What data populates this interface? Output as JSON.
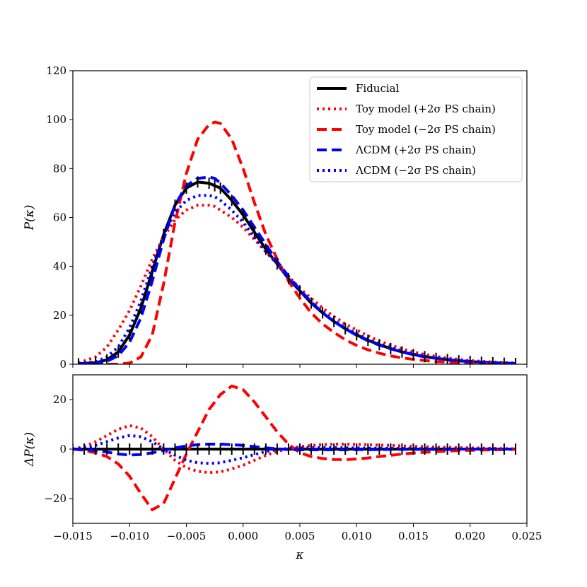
{
  "chart_data": [
    {
      "type": "line",
      "panel": "top",
      "title": "",
      "xlabel": "",
      "ylabel": "P(κ)",
      "xlim": [
        -0.015,
        0.025
      ],
      "ylim": [
        0,
        120
      ],
      "xticks": [
        -0.015,
        -0.01,
        -0.005,
        0.0,
        0.005,
        0.01,
        0.015,
        0.02,
        0.025
      ],
      "yticks": [
        0,
        20,
        40,
        60,
        80,
        100,
        120
      ],
      "ytick_labels": [
        "0",
        "20",
        "40",
        "60",
        "80",
        "100",
        "120"
      ],
      "legend_position": "top-right",
      "x": [
        -0.0145,
        -0.013,
        -0.012,
        -0.011,
        -0.01,
        -0.009,
        -0.008,
        -0.007,
        -0.006,
        -0.005,
        -0.004,
        -0.003,
        -0.0025,
        -0.002,
        -0.001,
        0.0,
        0.001,
        0.002,
        0.003,
        0.004,
        0.005,
        0.006,
        0.007,
        0.008,
        0.009,
        0.01,
        0.011,
        0.012,
        0.013,
        0.014,
        0.015,
        0.016,
        0.017,
        0.018,
        0.019,
        0.02,
        0.021,
        0.022,
        0.023,
        0.024
      ],
      "series": [
        {
          "name": "Fiducial",
          "color": "#000000",
          "style": "solid",
          "values": [
            0.2,
            0.6,
            1.8,
            5,
            12,
            23,
            38,
            53,
            65,
            72,
            74.5,
            74,
            73,
            72,
            67,
            61,
            54,
            47,
            41,
            35,
            30,
            25,
            21,
            17.5,
            14.5,
            12,
            9.8,
            8,
            6.4,
            5,
            4,
            3.1,
            2.4,
            1.9,
            1.4,
            1.1,
            0.8,
            0.6,
            0.4,
            0.3
          ]
        },
        {
          "name": "Toy model (+2σ PS chain)",
          "color": "#ff0000",
          "style": "dotted",
          "values": [
            0.5,
            3,
            7,
            14,
            22,
            32,
            43,
            52,
            59,
            63,
            65,
            65,
            64.5,
            63,
            60,
            56,
            51,
            46,
            41,
            36,
            31,
            27,
            23,
            19.5,
            16.5,
            14,
            11.6,
            9.5,
            7.8,
            6.3,
            5,
            4,
            3.2,
            2.5,
            2,
            1.5,
            1.2,
            0.9,
            0.7,
            0.5
          ]
        },
        {
          "name": "Toy model (−2σ PS chain)",
          "color": "#ff0000",
          "style": "dashed",
          "values": [
            0,
            0,
            0,
            0,
            0.5,
            3,
            12,
            33,
            58,
            78,
            92,
            98,
            99,
            98.5,
            92,
            80,
            66,
            53,
            43,
            34,
            27,
            21,
            16.5,
            13,
            10,
            7.7,
            5.9,
            4.5,
            3.4,
            2.6,
            2,
            1.5,
            1.1,
            0.8,
            0.6,
            0.4,
            0.3,
            0.2,
            0.1,
            0.1
          ]
        },
        {
          "name": "ΛCDM (+2σ PS chain)",
          "color": "#0000ff",
          "style": "dashed",
          "values": [
            0.1,
            0.4,
            1.2,
            3.5,
            9,
            19,
            34,
            51,
            65,
            73,
            76,
            76.5,
            76,
            74,
            69,
            63,
            56,
            49,
            42,
            36,
            30.5,
            25.5,
            21,
            17.5,
            14.5,
            11.8,
            9.6,
            7.8,
            6.3,
            5,
            3.9,
            3,
            2.4,
            1.8,
            1.4,
            1.1,
            0.8,
            0.6,
            0.4,
            0.3
          ]
        },
        {
          "name": "ΛCDM (−2σ PS chain)",
          "color": "#0000ff",
          "style": "dotted",
          "values": [
            0.3,
            1,
            3,
            7,
            15,
            26,
            40,
            53,
            62,
            67,
            69,
            69,
            68.5,
            67,
            63,
            58,
            52,
            46,
            41,
            35,
            30,
            25.5,
            21.5,
            18,
            15,
            12.4,
            10.2,
            8.3,
            6.7,
            5.3,
            4.2,
            3.3,
            2.6,
            2,
            1.5,
            1.2,
            0.9,
            0.7,
            0.5,
            0.35
          ]
        }
      ]
    },
    {
      "type": "line",
      "panel": "bottom",
      "title": "",
      "xlabel": "κ",
      "ylabel": "ΔP(κ)",
      "xlim": [
        -0.015,
        0.025
      ],
      "ylim": [
        -30,
        30
      ],
      "xticks": [
        -0.015,
        -0.01,
        -0.005,
        0.0,
        0.005,
        0.01,
        0.015,
        0.02,
        0.025
      ],
      "xtick_labels": [
        "−0.015",
        "−0.010",
        "−0.005",
        "0.000",
        "0.005",
        "0.010",
        "0.015",
        "0.020",
        "0.025"
      ],
      "yticks": [
        -20,
        0,
        20
      ],
      "ytick_labels": [
        "−20",
        "0",
        "20"
      ],
      "x": [
        -0.015,
        -0.014,
        -0.013,
        -0.012,
        -0.011,
        -0.01,
        -0.009,
        -0.008,
        -0.007,
        -0.006,
        -0.005,
        -0.004,
        -0.003,
        -0.002,
        -0.001,
        0.0,
        0.001,
        0.002,
        0.003,
        0.004,
        0.005,
        0.006,
        0.007,
        0.008,
        0.009,
        0.01,
        0.011,
        0.012,
        0.013,
        0.014,
        0.015,
        0.016,
        0.017,
        0.018,
        0.019,
        0.02,
        0.021,
        0.022,
        0.023,
        0.024
      ],
      "series": [
        {
          "name": "Fiducial",
          "color": "#000000",
          "style": "solid",
          "values": [
            0,
            0,
            0,
            0,
            0,
            0,
            0,
            0,
            0,
            0,
            0,
            0,
            0,
            0,
            0,
            0,
            0,
            0,
            0,
            0,
            0,
            0,
            0,
            0,
            0,
            0,
            0,
            0,
            0,
            0,
            0,
            0,
            0,
            0,
            0,
            0,
            0,
            0,
            0,
            0
          ]
        },
        {
          "name": "Toy model (+2σ PS chain)",
          "color": "#ff0000",
          "style": "dotted",
          "values": [
            0,
            1,
            3,
            5.5,
            8,
            9.5,
            8.5,
            5,
            0,
            -4.5,
            -7.5,
            -9,
            -9.5,
            -9.2,
            -8,
            -6.5,
            -4.5,
            -2.5,
            -1,
            0.2,
            1,
            1.5,
            1.8,
            2,
            2,
            1.9,
            1.8,
            1.6,
            1.5,
            1.3,
            1.1,
            1,
            0.8,
            0.7,
            0.6,
            0.5,
            0.4,
            0.3,
            0.2,
            0.1
          ]
        },
        {
          "name": "Toy model (−2σ PS chain)",
          "color": "#ff0000",
          "style": "dashed",
          "values": [
            0,
            -0.5,
            -1.5,
            -3,
            -6,
            -11,
            -18,
            -24.5,
            -22,
            -12,
            -2,
            7,
            16,
            22,
            25.5,
            24,
            19,
            13,
            7,
            2,
            -1.5,
            -3,
            -3.8,
            -4.2,
            -4.3,
            -4,
            -3.6,
            -3,
            -2.5,
            -2,
            -1.6,
            -1.3,
            -1,
            -0.8,
            -0.6,
            -0.5,
            -0.4,
            -0.3,
            -0.2,
            -0.1
          ]
        },
        {
          "name": "ΛCDM (+2σ PS chain)",
          "color": "#0000ff",
          "style": "dashed",
          "values": [
            0,
            -0.2,
            -0.6,
            -1.2,
            -2,
            -2.4,
            -2.2,
            -1.5,
            -0.5,
            0.5,
            1.3,
            1.8,
            2,
            2,
            1.8,
            1.5,
            1,
            0.5,
            0.1,
            -0.2,
            -0.3,
            -0.3,
            -0.3,
            -0.3,
            -0.3,
            -0.2,
            -0.2,
            -0.2,
            -0.1,
            -0.1,
            -0.1,
            -0.1,
            -0.1,
            -0.1,
            0,
            0,
            0,
            0,
            0,
            0
          ]
        },
        {
          "name": "ΛCDM (−2σ PS chain)",
          "color": "#0000ff",
          "style": "dotted",
          "values": [
            0,
            0.5,
            1.5,
            3,
            4.5,
            5.5,
            5,
            3,
            0,
            -2.5,
            -4.5,
            -5.5,
            -5.8,
            -5.5,
            -4.5,
            -3.5,
            -2.2,
            -1,
            -0.2,
            0.3,
            0.5,
            0.6,
            0.6,
            0.6,
            0.5,
            0.5,
            0.4,
            0.4,
            0.3,
            0.3,
            0.2,
            0.2,
            0.2,
            0.1,
            0.1,
            0.1,
            0.1,
            0.1,
            0,
            0
          ]
        }
      ]
    }
  ]
}
